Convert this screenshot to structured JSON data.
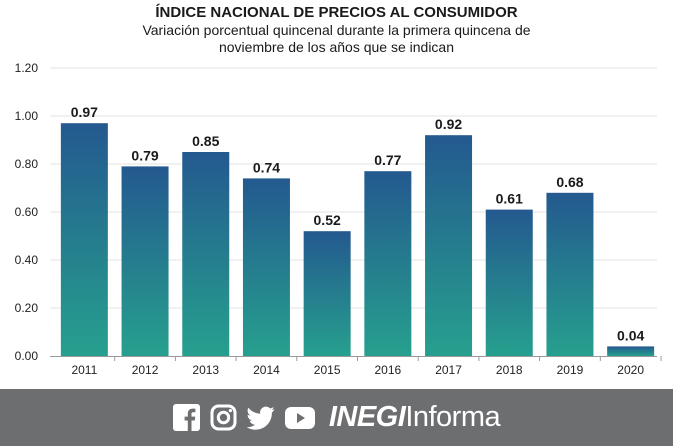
{
  "chart_data": {
    "type": "bar",
    "title": "ÍNDICE NACIONAL DE PRECIOS AL CONSUMIDOR",
    "subtitle_line1": "Variación porcentual quincenal durante la primera quincena de",
    "subtitle_line2": "noviembre de los años que se indican",
    "categories": [
      "2011",
      "2012",
      "2013",
      "2014",
      "2015",
      "2016",
      "2017",
      "2018",
      "2019",
      "2020"
    ],
    "values": [
      0.97,
      0.79,
      0.85,
      0.74,
      0.52,
      0.77,
      0.92,
      0.61,
      0.68,
      0.04
    ],
    "value_labels": [
      "0.97",
      "0.79",
      "0.85",
      "0.74",
      "0.52",
      "0.77",
      "0.92",
      "0.61",
      "0.68",
      "0.04"
    ],
    "yticks": [
      "0.00",
      "0.20",
      "0.40",
      "0.60",
      "0.80",
      "1.00",
      "1.20"
    ],
    "ylim": [
      0,
      1.2
    ],
    "xlabel": "",
    "ylabel": "",
    "grid": true,
    "colors": {
      "bar_top": "#24598f",
      "bar_bottom": "#26a08e",
      "grid": "#e3e3e3",
      "axis": "#9a9a9a"
    }
  },
  "footer": {
    "icons": [
      "facebook-icon",
      "instagram-icon",
      "twitter-icon",
      "youtube-icon"
    ],
    "brand_bold": "INEGI",
    "brand_light": "Informa",
    "background": "#6d6e70"
  }
}
